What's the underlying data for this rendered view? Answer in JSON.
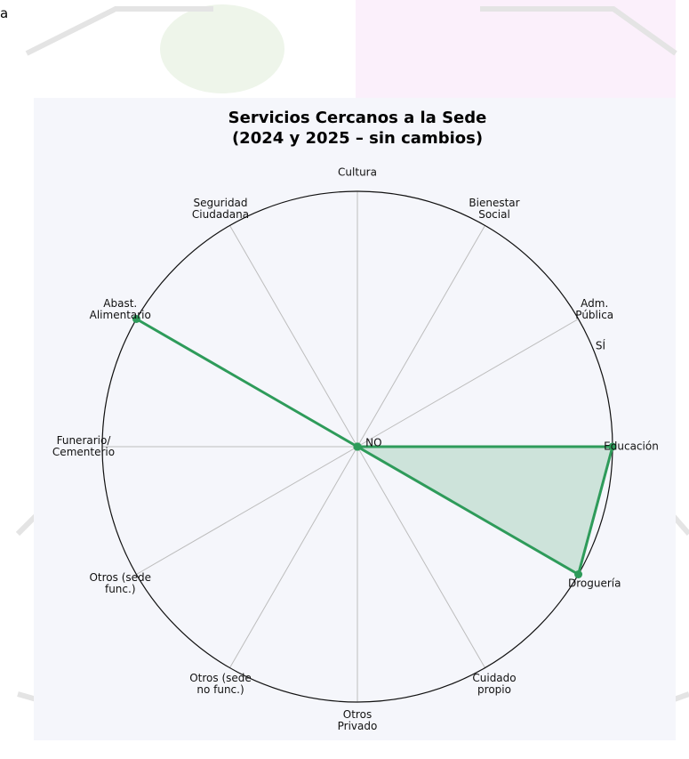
{
  "page_fragment": "a",
  "chart_data": {
    "type": "radar",
    "title": [
      "Servicios Cercanos a la Sede",
      "(2024 y 2025 – sin cambios)"
    ],
    "categories": [
      "Educación",
      "Adm.\nPública",
      "Bienestar\nSocial",
      "Cultura",
      "Seguridad\nCiudadana",
      "Abast.\nAlimentario",
      "Funerario/\nCementerio",
      "Otros (sede\nfunc.)",
      "Otros (sede\nno func.)",
      "Otros\nPrivado",
      "Cuidado\npropio",
      "Droguería"
    ],
    "values": [
      1,
      0,
      0,
      0,
      0,
      1,
      0,
      0,
      0,
      0,
      0,
      1
    ],
    "color": "#2e9b5a",
    "rlim": [
      0,
      1
    ],
    "rticks": [
      {
        "value": 0,
        "label": "NO"
      },
      {
        "value": 1,
        "label": "SÍ"
      }
    ],
    "grid": true
  }
}
